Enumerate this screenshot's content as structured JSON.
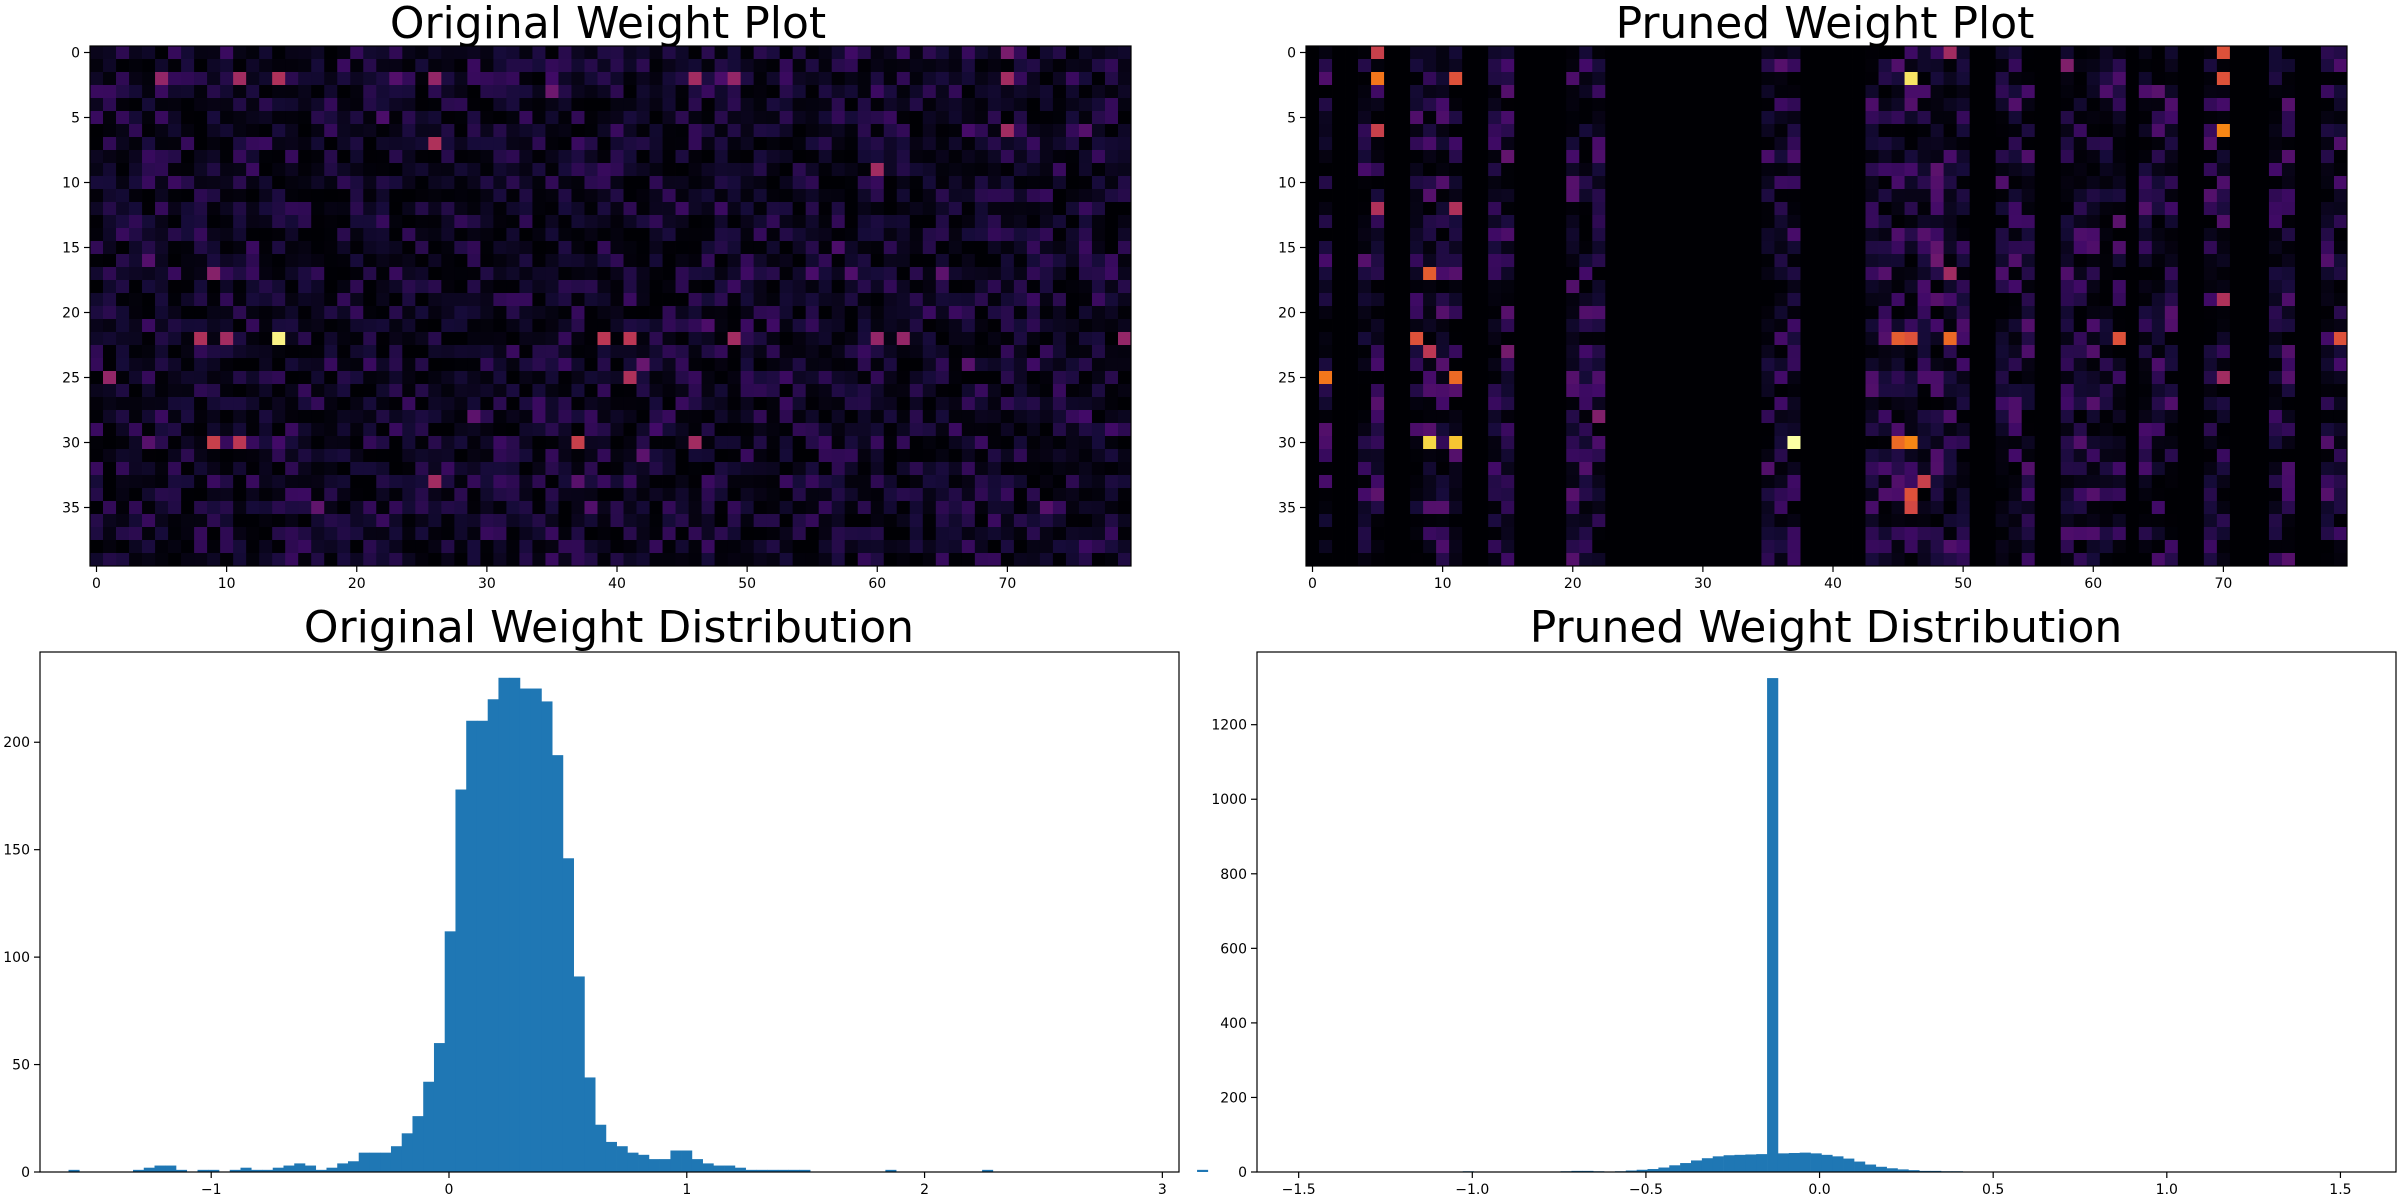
{
  "chart_data": [
    {
      "type": "heatmap",
      "title": "Original Weight Plot",
      "rows": 40,
      "cols": 80,
      "colormap": "inferno",
      "x_ticks": [
        "0",
        "10",
        "20",
        "30",
        "40",
        "50",
        "60",
        "70"
      ],
      "x_tick_values": [
        0,
        10,
        20,
        30,
        40,
        50,
        60,
        70
      ],
      "y_ticks": [
        "0",
        "5",
        "10",
        "15",
        "20",
        "25",
        "30",
        "35"
      ],
      "y_tick_values": [
        0,
        5,
        10,
        15,
        20,
        25,
        30,
        35
      ],
      "color_range": [
        0,
        3
      ],
      "noise_scale": 0.55,
      "seed": 12345,
      "pruned_columns": [],
      "highlights": [
        {
          "row": 22,
          "col": 14,
          "value": 2.9
        },
        {
          "row": 22,
          "col": 8,
          "value": 1.4
        },
        {
          "row": 22,
          "col": 10,
          "value": 1.3
        },
        {
          "row": 22,
          "col": 39,
          "value": 1.5
        },
        {
          "row": 22,
          "col": 41,
          "value": 1.5
        },
        {
          "row": 22,
          "col": 49,
          "value": 1.3
        },
        {
          "row": 22,
          "col": 60,
          "value": 1.2
        },
        {
          "row": 22,
          "col": 62,
          "value": 1.2
        },
        {
          "row": 22,
          "col": 79,
          "value": 1.2
        },
        {
          "row": 30,
          "col": 9,
          "value": 1.6
        },
        {
          "row": 30,
          "col": 11,
          "value": 1.5
        },
        {
          "row": 30,
          "col": 37,
          "value": 1.6
        },
        {
          "row": 30,
          "col": 46,
          "value": 1.3
        },
        {
          "row": 2,
          "col": 5,
          "value": 1.2
        },
        {
          "row": 2,
          "col": 11,
          "value": 1.3
        },
        {
          "row": 2,
          "col": 14,
          "value": 1.4
        },
        {
          "row": 2,
          "col": 26,
          "value": 1.2
        },
        {
          "row": 2,
          "col": 46,
          "value": 1.3
        },
        {
          "row": 2,
          "col": 49,
          "value": 1.2
        },
        {
          "row": 2,
          "col": 70,
          "value": 1.3
        },
        {
          "row": 7,
          "col": 26,
          "value": 1.4
        },
        {
          "row": 9,
          "col": 60,
          "value": 1.3
        },
        {
          "row": 25,
          "col": 1,
          "value": 1.2
        },
        {
          "row": 25,
          "col": 41,
          "value": 1.4
        },
        {
          "row": 33,
          "col": 26,
          "value": 1.3
        },
        {
          "row": 6,
          "col": 70,
          "value": 1.3
        },
        {
          "row": 17,
          "col": 9,
          "value": 1.1
        },
        {
          "row": 0,
          "col": 70,
          "value": 1.0
        }
      ]
    },
    {
      "type": "heatmap",
      "title": "Pruned Weight Plot",
      "rows": 40,
      "cols": 80,
      "colormap": "inferno",
      "x_ticks": [
        "0",
        "10",
        "20",
        "30",
        "40",
        "50",
        "60",
        "70"
      ],
      "x_tick_values": [
        0,
        10,
        20,
        30,
        40,
        50,
        60,
        70
      ],
      "y_ticks": [
        "0",
        "5",
        "10",
        "15",
        "20",
        "25",
        "30",
        "35"
      ],
      "y_tick_values": [
        0,
        5,
        10,
        15,
        20,
        25,
        30,
        35
      ],
      "color_range": [
        0,
        3
      ],
      "noise_scale": 0.75,
      "seed": 6789,
      "pruned_columns": [
        0,
        2,
        3,
        6,
        7,
        12,
        13,
        16,
        17,
        18,
        19,
        23,
        24,
        25,
        26,
        27,
        28,
        29,
        30,
        31,
        32,
        33,
        34,
        38,
        39,
        40,
        41,
        42,
        51,
        52,
        56,
        57,
        63,
        67,
        68,
        71,
        72,
        73,
        76,
        77
      ],
      "highlights": [
        {
          "row": 2,
          "col": 46,
          "value": 2.8
        },
        {
          "row": 30,
          "col": 37,
          "value": 3.0
        },
        {
          "row": 30,
          "col": 9,
          "value": 2.7
        },
        {
          "row": 30,
          "col": 11,
          "value": 2.6
        },
        {
          "row": 30,
          "col": 45,
          "value": 2.0
        },
        {
          "row": 30,
          "col": 46,
          "value": 2.2
        },
        {
          "row": 22,
          "col": 8,
          "value": 1.8
        },
        {
          "row": 22,
          "col": 45,
          "value": 1.9
        },
        {
          "row": 22,
          "col": 46,
          "value": 1.8
        },
        {
          "row": 22,
          "col": 49,
          "value": 2.0
        },
        {
          "row": 22,
          "col": 62,
          "value": 1.8
        },
        {
          "row": 22,
          "col": 79,
          "value": 1.8
        },
        {
          "row": 25,
          "col": 1,
          "value": 2.1
        },
        {
          "row": 25,
          "col": 11,
          "value": 2.0
        },
        {
          "row": 2,
          "col": 5,
          "value": 2.1
        },
        {
          "row": 2,
          "col": 11,
          "value": 1.8
        },
        {
          "row": 2,
          "col": 70,
          "value": 1.8
        },
        {
          "row": 0,
          "col": 5,
          "value": 1.6
        },
        {
          "row": 0,
          "col": 70,
          "value": 1.8
        },
        {
          "row": 6,
          "col": 70,
          "value": 2.2
        },
        {
          "row": 6,
          "col": 5,
          "value": 1.6
        },
        {
          "row": 17,
          "col": 9,
          "value": 1.9
        },
        {
          "row": 23,
          "col": 9,
          "value": 1.5
        },
        {
          "row": 12,
          "col": 5,
          "value": 1.4
        },
        {
          "row": 12,
          "col": 11,
          "value": 1.4
        },
        {
          "row": 34,
          "col": 46,
          "value": 1.8
        },
        {
          "row": 35,
          "col": 46,
          "value": 1.7
        },
        {
          "row": 33,
          "col": 47,
          "value": 1.6
        },
        {
          "row": 17,
          "col": 49,
          "value": 1.3
        },
        {
          "row": 0,
          "col": 49,
          "value": 1.3
        },
        {
          "row": 19,
          "col": 70,
          "value": 1.4
        },
        {
          "row": 25,
          "col": 70,
          "value": 1.3
        }
      ]
    },
    {
      "type": "bar",
      "subtype": "histogram",
      "title": "Original Weight Distribution",
      "color": "#1f77b4",
      "xlim": [
        -1.72,
        3.07
      ],
      "ylim": [
        0,
        242
      ],
      "x_ticks": [
        "−1",
        "0",
        "1",
        "2",
        "3"
      ],
      "x_tick_values": [
        -1,
        0,
        1,
        2,
        3
      ],
      "y_ticks": [
        "0",
        "50",
        "100",
        "150",
        "200"
      ],
      "y_tick_values": [
        0,
        50,
        100,
        150,
        200
      ],
      "bin_start": -1.6,
      "bin_width": 0.0452,
      "counts": [
        1,
        0,
        0,
        0,
        0,
        0,
        1,
        2,
        3,
        3,
        1,
        0,
        1,
        1,
        0,
        1,
        2,
        1,
        1,
        2,
        3,
        4,
        3,
        1,
        2,
        4,
        5,
        9,
        9,
        9,
        12,
        18,
        26,
        42,
        60,
        112,
        178,
        210,
        210,
        220,
        230,
        230,
        225,
        225,
        219,
        194,
        146,
        91,
        44,
        22,
        14,
        12,
        9,
        8,
        6,
        6,
        10,
        10,
        6,
        4,
        3,
        3,
        2,
        1,
        1,
        1,
        1,
        1,
        1,
        0,
        0,
        0,
        0,
        0,
        0,
        0,
        1,
        0,
        0,
        0,
        0,
        0,
        0,
        0,
        0,
        1,
        0,
        0,
        0,
        0,
        0,
        0,
        0,
        0,
        0,
        0,
        0,
        0,
        0,
        0,
        0,
        0,
        0,
        0,
        0,
        1
      ]
    },
    {
      "type": "bar",
      "subtype": "histogram",
      "title": "Pruned Weight Distribution",
      "color": "#1f77b4",
      "xlim": [
        -1.62,
        1.66
      ],
      "ylim": [
        0,
        1395
      ],
      "x_ticks": [
        "−1.5",
        "−1.0",
        "−0.5",
        "0.0",
        "0.5",
        "1.0",
        "1.5"
      ],
      "x_tick_values": [
        -1.5,
        -1.0,
        -0.5,
        0.0,
        0.5,
        1.0,
        1.5
      ],
      "y_ticks": [
        "0",
        "200",
        "400",
        "600",
        "800",
        "1000",
        "1200"
      ],
      "y_tick_values": [
        0,
        200,
        400,
        600,
        800,
        1000,
        1200
      ],
      "bin_start": -1.497,
      "bin_width": 0.0313,
      "counts": [
        1,
        0,
        0,
        0,
        0,
        0,
        0,
        0,
        0,
        0,
        0,
        0,
        0,
        0,
        1,
        2,
        1,
        0,
        0,
        1,
        0,
        1,
        1,
        1,
        2,
        3,
        3,
        2,
        1,
        2,
        4,
        6,
        8,
        12,
        18,
        24,
        31,
        37,
        42,
        45,
        46,
        47,
        48,
        1325,
        50,
        51,
        52,
        50,
        46,
        42,
        36,
        28,
        20,
        14,
        10,
        7,
        5,
        3,
        3,
        2,
        2,
        1,
        1,
        1,
        1,
        1,
        1,
        0,
        0,
        0,
        0,
        0,
        0,
        0,
        0,
        0,
        0,
        0,
        0,
        0,
        0,
        0,
        0,
        0,
        0,
        0,
        0,
        0,
        0,
        0,
        0,
        0,
        0,
        0,
        0,
        0,
        1
      ]
    }
  ]
}
